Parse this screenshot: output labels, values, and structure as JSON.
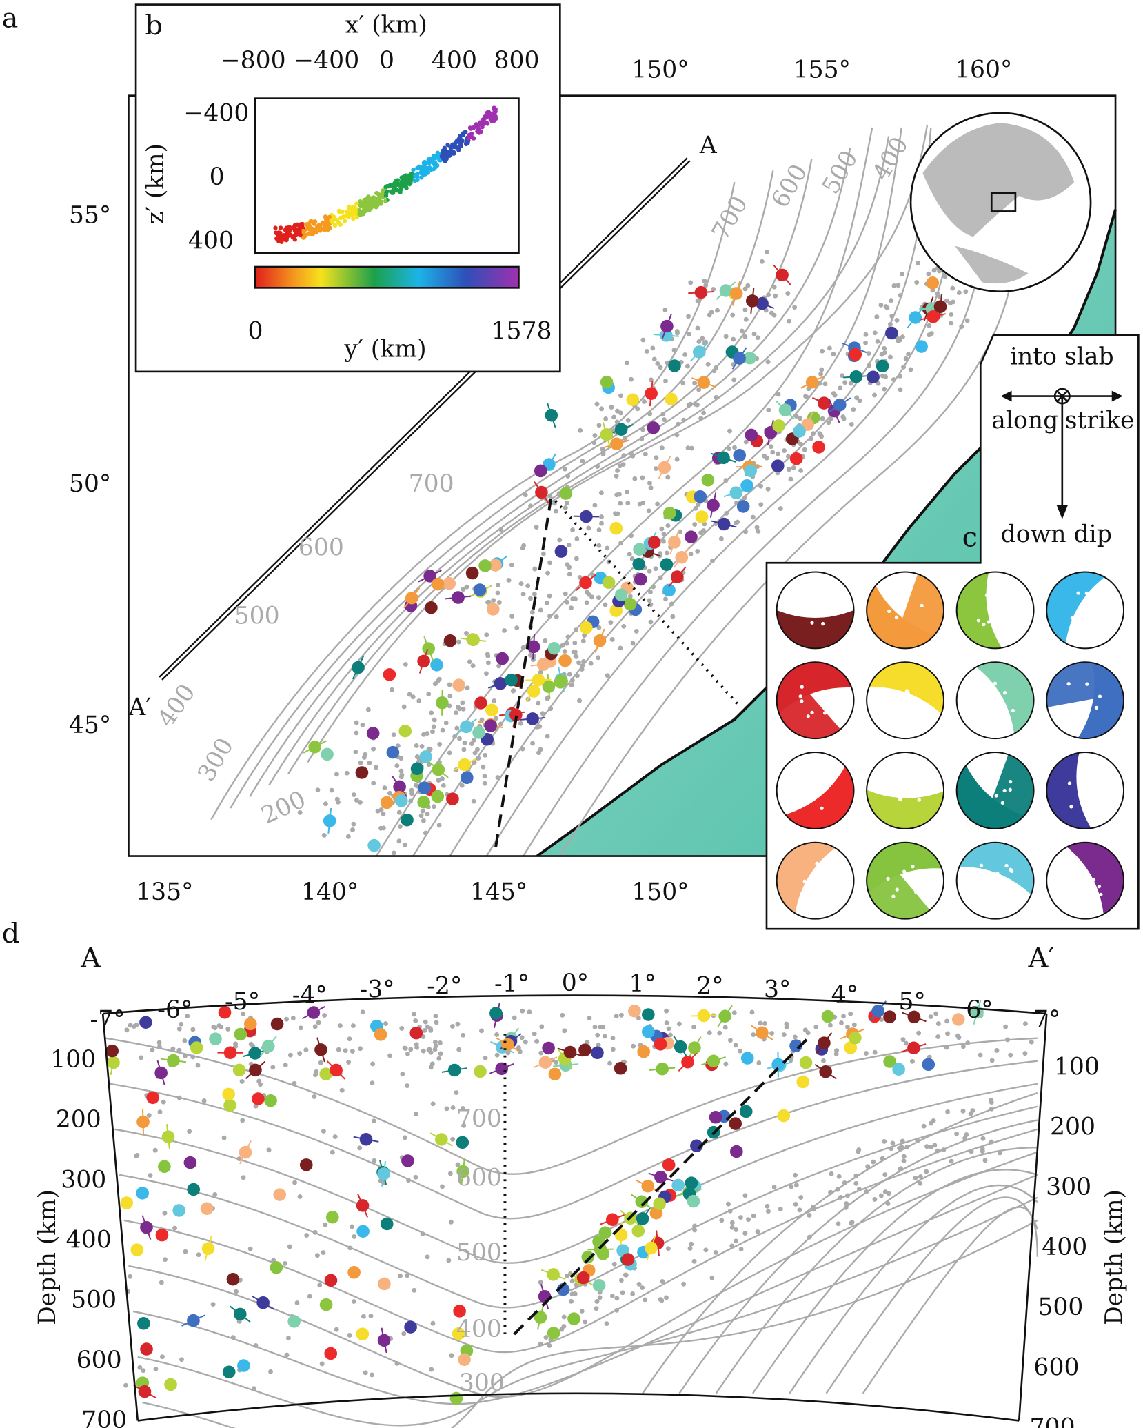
{
  "panels": {
    "a": "a",
    "b": "b",
    "c": "c",
    "d": "d"
  },
  "map": {
    "lon_ticks_bottom": [
      "135°",
      "140°",
      "145°",
      "150°"
    ],
    "lon_ticks_top": [
      "150°",
      "155°",
      "160°"
    ],
    "lat_ticks": [
      "45°",
      "50°",
      "55°"
    ],
    "profile_start": "A",
    "profile_end": "A′",
    "contour_labels": [
      "200",
      "300",
      "400",
      "500",
      "600",
      "700",
      "700",
      "600",
      "500",
      "400"
    ]
  },
  "inset_b": {
    "xlabel": "x′ (km)",
    "x_ticks": [
      "−800",
      "−400",
      "0",
      "400",
      "800"
    ],
    "ylabel": "z′ (km)",
    "y_ticks": [
      "−400",
      "0",
      "400"
    ],
    "colorbar_label": "y′ (km)",
    "colorbar_min": "0",
    "colorbar_max": "1578"
  },
  "legend_c": {
    "into_slab": "into slab",
    "along": "along",
    "strike": "strike",
    "down_dip": "down dip",
    "mechanism_colors": [
      "#7a1f1f",
      "#f39a3c",
      "#8cc63f",
      "#3bb8ea",
      "#d7262b",
      "#f6dc2b",
      "#7fd1ae",
      "#3f6fc0",
      "#ec2a2a",
      "#b7d43a",
      "#0d7f7a",
      "#3f3b9c",
      "#f7b27f",
      "#86c440",
      "#63c7dd",
      "#7b2b8d"
    ]
  },
  "section_d": {
    "start": "A",
    "end": "A′",
    "x_ticks": [
      "-7°",
      "-6°",
      "-5°",
      "-4°",
      "-3°",
      "-2°",
      "-1°",
      "0°",
      "1°",
      "2°",
      "3°",
      "4°",
      "5°",
      "6°",
      "7°"
    ],
    "depth_ticks": [
      "100",
      "200",
      "300",
      "400",
      "500",
      "600",
      "700"
    ],
    "ylabel": "Depth (km)",
    "contour_labels": [
      "700",
      "600",
      "500",
      "400",
      "300"
    ]
  }
}
